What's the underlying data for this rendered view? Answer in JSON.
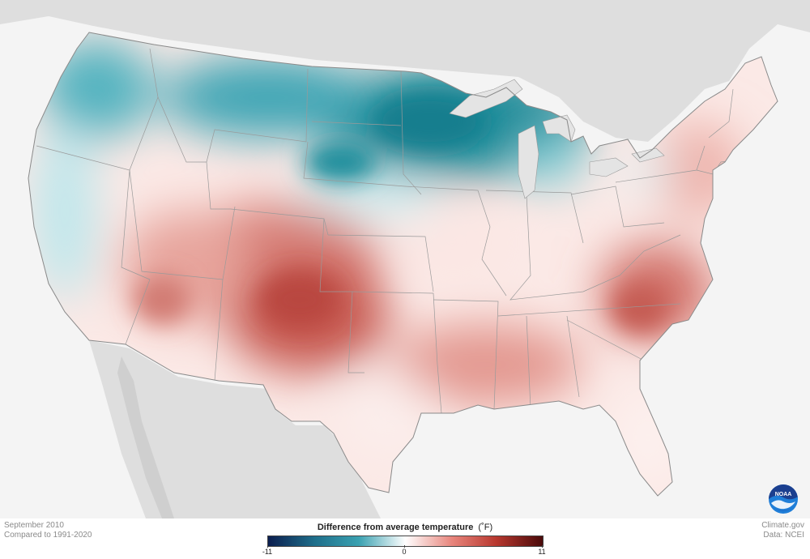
{
  "map": {
    "region": "contiguous-united-states",
    "variable": "temperature-anomaly"
  },
  "meta": {
    "period": "September 2010",
    "baseline": "Compared to 1991-2020",
    "source_site": "Climate.gov",
    "source_data": "Data: NCEI"
  },
  "legend": {
    "title": "Difference from average temperature",
    "unit": "(˚F)",
    "ticks": [
      "-11",
      "0",
      "11"
    ],
    "min": -11,
    "max": 11,
    "colors": [
      "#0b1e4f",
      "#1f6f8b",
      "#3aa1b1",
      "#ffffff",
      "#e8857c",
      "#b8382f",
      "#4a0a0a"
    ]
  },
  "logo": {
    "text": "NOAA",
    "icon": "noaa-logo-icon",
    "colors": [
      "#1b3f8f",
      "#1f7ed8"
    ]
  },
  "colors": {
    "ocean": "#f4f4f4",
    "neighbor_land": "#dedede",
    "lakes": "#e4e4e4",
    "borders": "#9a9a9a",
    "cold_anomaly": "#25919f",
    "warm_anomaly": "#c9584f"
  }
}
